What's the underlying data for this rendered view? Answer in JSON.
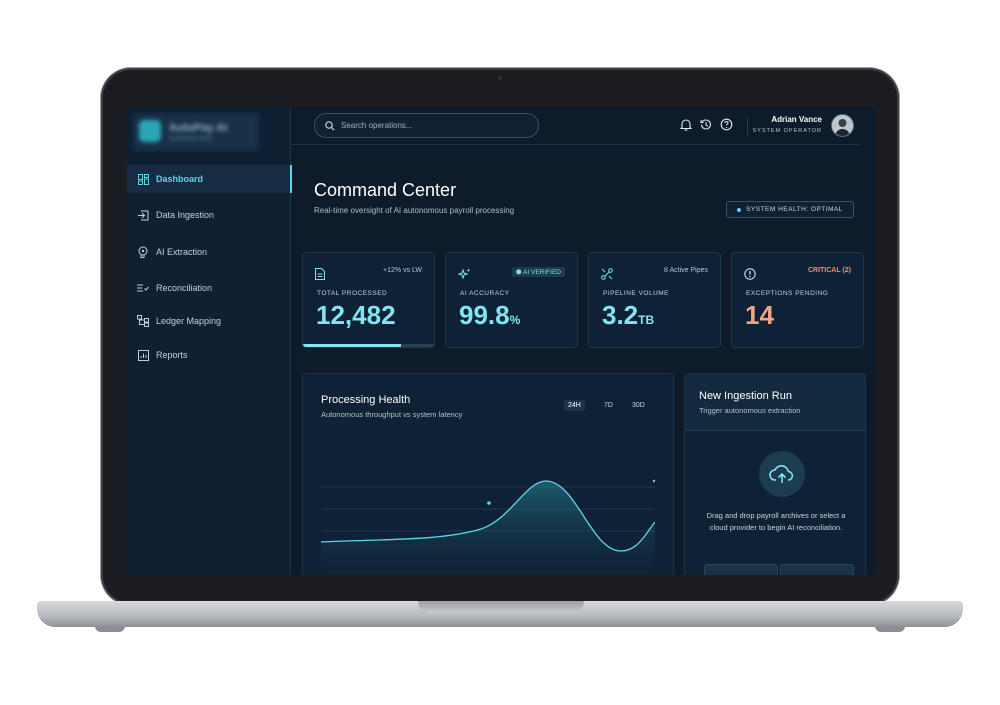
{
  "app": {
    "brand_name": "AutoPay AI",
    "brand_sub": "Command Suite"
  },
  "sidebar": {
    "items": [
      {
        "label": "Dashboard",
        "icon": "dashboard-grid-icon",
        "active": true
      },
      {
        "label": "Data Ingestion",
        "icon": "login-arrow-icon"
      },
      {
        "label": "AI Extraction",
        "icon": "brain-icon"
      },
      {
        "label": "Reconciliation",
        "icon": "list-check-icon"
      },
      {
        "label": "Ledger Mapping",
        "icon": "hierarchy-icon"
      },
      {
        "label": "Reports",
        "icon": "bar-report-icon"
      }
    ]
  },
  "topbar": {
    "search_placeholder": "Search operations...",
    "icons": [
      "bell-icon",
      "history-icon",
      "help-icon"
    ],
    "user_name": "Adrian Vance",
    "user_role": "SYSTEM OPERATOR"
  },
  "header": {
    "title": "Command Center",
    "subtitle": "Real-time oversight of AI autonomous payroll processing",
    "health_badge": "SYSTEM HEALTH: OPTIMAL"
  },
  "stats": [
    {
      "label": "TOTAL PROCESSED",
      "value": "12,482",
      "unit": "",
      "badge": "+12% vs LW",
      "icon": "document-icon",
      "progress": 0.75
    },
    {
      "label": "AI ACCURACY",
      "value": "99.8",
      "unit": "%",
      "badge": "AI VERIFIED",
      "icon": "sparkle-icon"
    },
    {
      "label": "PIPELINE VOLUME",
      "value": "3.2",
      "unit": "TB",
      "badge": "8 Active Pipes",
      "icon": "pipeline-icon"
    },
    {
      "label": "EXCEPTIONS PENDING",
      "value": "14",
      "unit": "",
      "badge": "CRITICAL (2)",
      "icon": "alert-circle-icon"
    }
  ],
  "processing_health": {
    "title": "Processing Health",
    "subtitle": "Autonomous throughput vs system latency",
    "ranges": [
      "24H",
      "7D",
      "30D"
    ],
    "active_range": "24H"
  },
  "ingestion": {
    "title": "New Ingestion Run",
    "subtitle": "Trigger autonomous extraction",
    "drop_text": "Drag and drop payroll archives or select a cloud provider to begin AI reconciliation."
  },
  "colors": {
    "accent": "#5fd6e6",
    "background": "#0d1b2a",
    "warning": "#f3a58a"
  }
}
